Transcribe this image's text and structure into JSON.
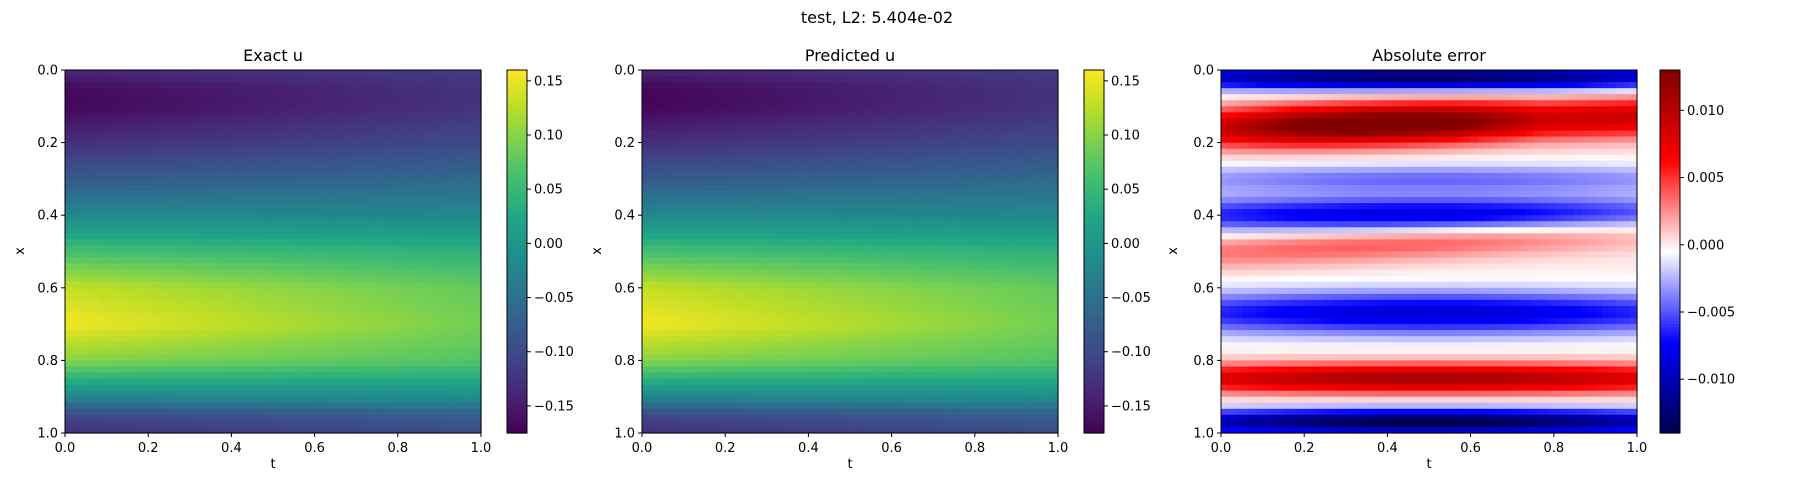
{
  "suptitle": "test, L2: 5.404e-02",
  "chart_data": [
    {
      "type": "heatmap",
      "title": "Exact u",
      "xlabel": "t",
      "ylabel": "x",
      "xlim": [
        0.0,
        1.0
      ],
      "ylim": [
        1.0,
        0.0
      ],
      "xticks": [
        "0.0",
        "0.2",
        "0.4",
        "0.6",
        "0.8",
        "1.0"
      ],
      "yticks": [
        "0.0",
        "0.2",
        "0.4",
        "0.6",
        "0.8",
        "1.0"
      ],
      "colormap": "viridis",
      "vmin": -0.175,
      "vmax": 0.16,
      "colorbar_ticks": [
        "0.15",
        "0.10",
        "0.05",
        "0.00",
        "−0.05",
        "−0.10",
        "−0.15"
      ],
      "colorbar_values": [
        0.15,
        0.1,
        0.05,
        0.0,
        -0.05,
        -0.1,
        -0.15
      ],
      "profile_x": [
        0.0,
        0.05,
        0.1,
        0.2,
        0.3,
        0.4,
        0.5,
        0.6,
        0.7,
        0.8,
        0.9,
        0.95,
        1.0
      ],
      "profile_u_at_t0": [
        -0.135,
        -0.165,
        -0.17,
        -0.13,
        -0.08,
        -0.02,
        0.06,
        0.13,
        0.155,
        0.1,
        -0.02,
        -0.1,
        -0.13
      ],
      "profile_u_at_t1": [
        -0.115,
        -0.125,
        -0.125,
        -0.1,
        -0.06,
        -0.02,
        0.04,
        0.08,
        0.09,
        0.07,
        -0.01,
        -0.07,
        -0.1
      ]
    },
    {
      "type": "heatmap",
      "title": "Predicted u",
      "xlabel": "t",
      "ylabel": "x",
      "xlim": [
        0.0,
        1.0
      ],
      "ylim": [
        1.0,
        0.0
      ],
      "xticks": [
        "0.0",
        "0.2",
        "0.4",
        "0.6",
        "0.8",
        "1.0"
      ],
      "yticks": [
        "0.0",
        "0.2",
        "0.4",
        "0.6",
        "0.8",
        "1.0"
      ],
      "colormap": "viridis",
      "vmin": -0.175,
      "vmax": 0.16,
      "colorbar_ticks": [
        "0.15",
        "0.10",
        "0.05",
        "0.00",
        "−0.05",
        "−0.10",
        "−0.15"
      ],
      "colorbar_values": [
        0.15,
        0.1,
        0.05,
        0.0,
        -0.05,
        -0.1,
        -0.15
      ],
      "profile_x": [
        0.0,
        0.05,
        0.1,
        0.2,
        0.3,
        0.4,
        0.5,
        0.6,
        0.7,
        0.8,
        0.9,
        0.95,
        1.0
      ],
      "profile_u_at_t0": [
        -0.14,
        -0.17,
        -0.172,
        -0.13,
        -0.08,
        -0.02,
        0.06,
        0.13,
        0.156,
        0.1,
        -0.02,
        -0.1,
        -0.13
      ],
      "profile_u_at_t1": [
        -0.115,
        -0.125,
        -0.125,
        -0.1,
        -0.06,
        -0.02,
        0.04,
        0.08,
        0.09,
        0.07,
        -0.01,
        -0.07,
        -0.1
      ]
    },
    {
      "type": "heatmap",
      "title": "Absolute error",
      "xlabel": "t",
      "ylabel": "x",
      "xlim": [
        0.0,
        1.0
      ],
      "ylim": [
        1.0,
        0.0
      ],
      "xticks": [
        "0.0",
        "0.2",
        "0.4",
        "0.6",
        "0.8",
        "1.0"
      ],
      "yticks": [
        "0.0",
        "0.2",
        "0.4",
        "0.6",
        "0.8",
        "1.0"
      ],
      "colormap": "seismic",
      "vmin": -0.014,
      "vmax": 0.013,
      "colorbar_ticks": [
        "0.010",
        "0.005",
        "0.000",
        "−0.005",
        "−0.010"
      ],
      "colorbar_values": [
        0.01,
        0.005,
        0.0,
        -0.005,
        -0.01
      ],
      "error_bands": [
        {
          "x": 0.02,
          "amp": -0.012,
          "w": 0.035
        },
        {
          "x": 0.16,
          "amp": 0.012,
          "w": 0.055
        },
        {
          "x": 0.3,
          "amp": -0.004,
          "w": 0.04
        },
        {
          "x": 0.4,
          "amp": -0.008,
          "w": 0.05
        },
        {
          "x": 0.5,
          "amp": 0.004,
          "w": 0.05
        },
        {
          "x": 0.67,
          "amp": -0.008,
          "w": 0.06
        },
        {
          "x": 0.85,
          "amp": 0.01,
          "w": 0.04
        },
        {
          "x": 0.97,
          "amp": -0.013,
          "w": 0.035
        }
      ]
    }
  ]
}
